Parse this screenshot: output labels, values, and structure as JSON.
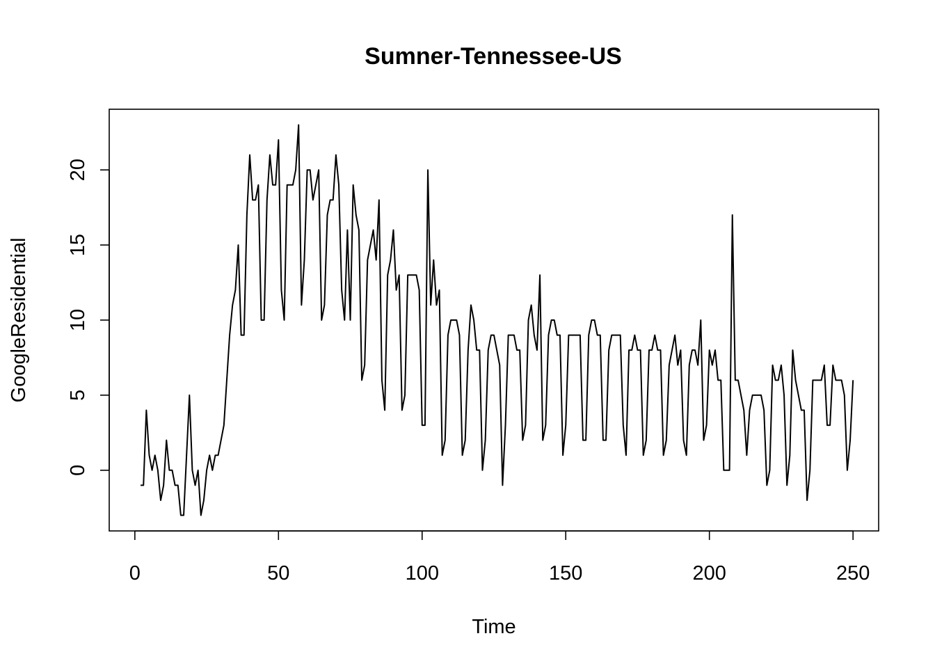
{
  "chart_data": {
    "type": "line",
    "title": "Sumner-Tennessee-US",
    "xlabel": "Time",
    "ylabel": "GoogleResidential",
    "xlim": [
      1,
      249
    ],
    "ylim": [
      -3,
      23
    ],
    "x_ticks": [
      0,
      50,
      100,
      150,
      200,
      250
    ],
    "y_ticks": [
      0,
      5,
      10,
      15,
      20
    ],
    "grid": false,
    "series": [
      {
        "x_start": 2,
        "values": [
          -1,
          -1,
          4,
          1,
          0,
          1,
          0,
          -2,
          -1,
          2,
          0,
          0,
          -1,
          -1,
          -3,
          -3,
          1,
          5,
          0,
          -1,
          0,
          -3,
          -2,
          0,
          1,
          0,
          1,
          1,
          2,
          3,
          6,
          9,
          11,
          12,
          15,
          9,
          9,
          17,
          21,
          18,
          18,
          19,
          10,
          10,
          18,
          21,
          19,
          19,
          22,
          12,
          10,
          19,
          19,
          19,
          20,
          23,
          11,
          14,
          20,
          20,
          18,
          19,
          20,
          10,
          11,
          17,
          18,
          18,
          21,
          19,
          12,
          10,
          16,
          10,
          19,
          17,
          16,
          6,
          7,
          14,
          15,
          16,
          14,
          18,
          6,
          4,
          13,
          14,
          16,
          12,
          13,
          4,
          5,
          13,
          13,
          13,
          13,
          12,
          3,
          3,
          20,
          11,
          14,
          11,
          12,
          1,
          2,
          9,
          10,
          10,
          10,
          9,
          1,
          2,
          8,
          11,
          10,
          8,
          8,
          0,
          2,
          8,
          9,
          9,
          8,
          7,
          -1,
          3,
          9,
          9,
          9,
          8,
          8,
          2,
          3,
          10,
          11,
          9,
          8,
          13,
          2,
          3,
          9,
          10,
          10,
          9,
          9,
          1,
          3,
          9,
          9,
          9,
          9,
          9,
          2,
          2,
          9,
          10,
          10,
          9,
          9,
          2,
          2,
          8,
          9,
          9,
          9,
          9,
          3,
          1,
          8,
          8,
          9,
          8,
          8,
          1,
          2,
          8,
          8,
          9,
          8,
          8,
          1,
          2,
          7,
          8,
          9,
          7,
          8,
          2,
          1,
          7,
          8,
          8,
          7,
          10,
          2,
          3,
          8,
          7,
          8,
          6,
          6,
          0,
          0,
          0,
          17,
          6,
          6,
          5,
          4,
          1,
          4,
          5,
          5,
          5,
          5,
          4,
          -1,
          0,
          7,
          6,
          6,
          7,
          5,
          -1,
          1,
          8,
          6,
          5,
          4,
          4,
          -2,
          0,
          6,
          6,
          6,
          6,
          7,
          3,
          3,
          7,
          6,
          6,
          6,
          5,
          0,
          2,
          6
        ]
      }
    ]
  }
}
